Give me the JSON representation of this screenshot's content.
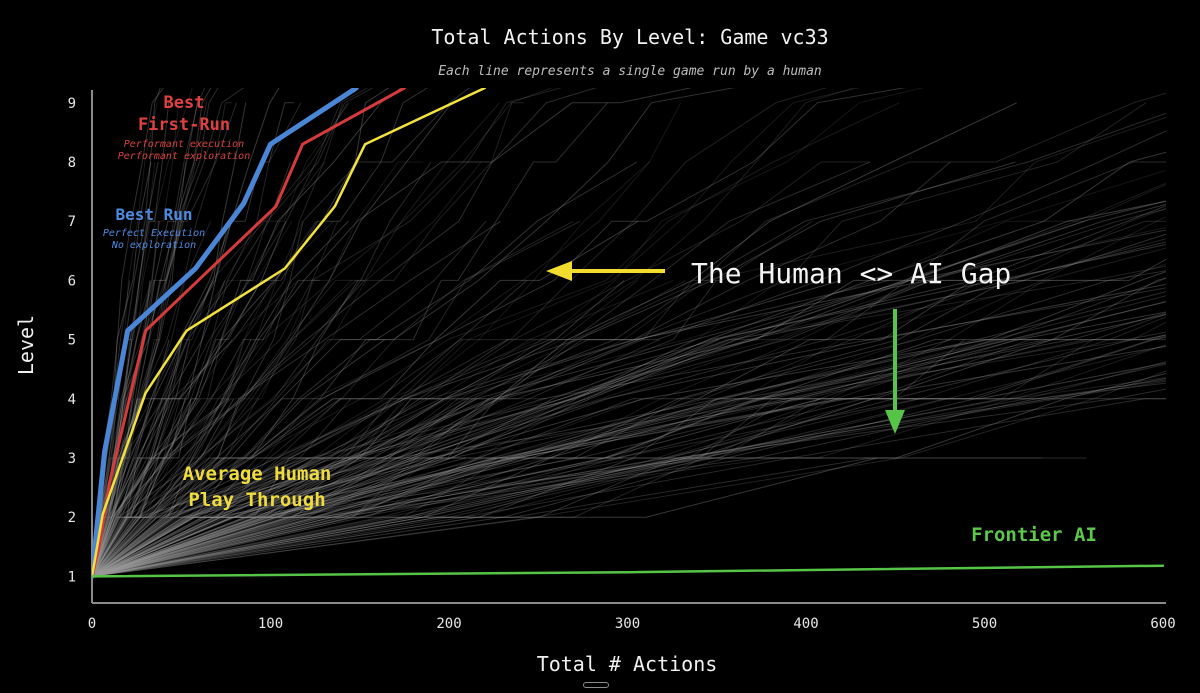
{
  "chart_data": {
    "type": "line",
    "title": "Total Actions By Level: Game vc33",
    "subtitle": "Each line represents a single game run by a human",
    "xlabel": "Total # Actions",
    "ylabel": "Level",
    "xlim": [
      0,
      600
    ],
    "ylim": [
      0.55,
      9.25
    ],
    "x_ticks": [
      0,
      100,
      200,
      300,
      400,
      500,
      600
    ],
    "y_ticks": [
      1,
      2,
      3,
      4,
      5,
      6,
      7,
      8,
      9
    ],
    "grid": false,
    "legend": "none",
    "background_series": {
      "name": "Human runs",
      "color": "#9a9a9a",
      "description_shown": "many individual human runs drawn as faint grey lines"
    },
    "series": [
      {
        "name": "Best Run",
        "color": "#4a86d6",
        "x": [
          0,
          7,
          20,
          58,
          85,
          100,
          148
        ],
        "y": [
          1,
          3.1,
          5.15,
          6.2,
          7.3,
          8.3,
          9.25
        ]
      },
      {
        "name": "Best First-Run",
        "color": "#d63a3a",
        "x": [
          0,
          4,
          10,
          30,
          70,
          103,
          118,
          175
        ],
        "y": [
          1,
          1.5,
          2.6,
          5.15,
          6.3,
          7.25,
          8.3,
          9.25
        ]
      },
      {
        "name": "Average Human Play Through",
        "color": "#f2e23a",
        "x": [
          0,
          6,
          30,
          53,
          108,
          136,
          153,
          220
        ],
        "y": [
          1,
          2.05,
          4.1,
          5.15,
          6.2,
          7.25,
          8.3,
          9.25
        ]
      },
      {
        "name": "Frontier AI",
        "color": "#56c447",
        "x": [
          0,
          300,
          600
        ],
        "y": [
          1,
          1.07,
          1.18
        ]
      }
    ],
    "annotations": {
      "best_first_run": {
        "title_line1": "Best",
        "title_line2": "First-Run",
        "note_line1": "Performant execution",
        "note_line2": "Performant exploration",
        "color": "#e04040"
      },
      "best_run": {
        "title": "Best Run",
        "note_line1": "Perfect Execution",
        "note_line2": "No exploration",
        "color": "#4d8be0"
      },
      "average_human": {
        "line1": "Average Human",
        "line2": "Play Through",
        "color": "#f0dc3c"
      },
      "frontier_ai": {
        "label": "Frontier AI",
        "color": "#5cc84a"
      },
      "gap": {
        "label": "The Human <> AI Gap",
        "arrow_left_color": "#f2dd2e",
        "arrow_down_color": "#56c447"
      }
    }
  }
}
